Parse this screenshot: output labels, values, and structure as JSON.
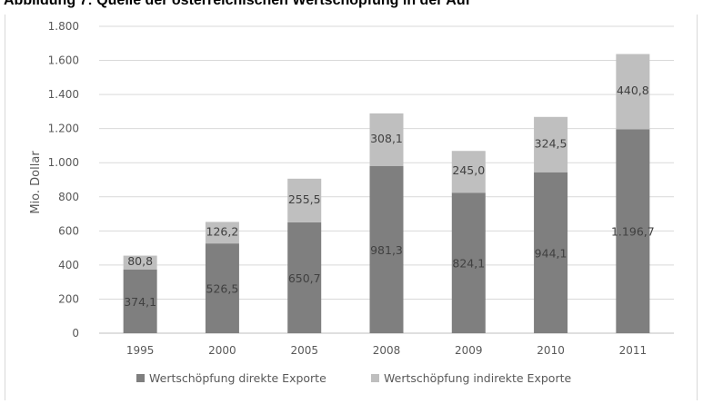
{
  "page_title": "Abbildung 7: Quelle der österreichischen Wertschöpfung in der Auf",
  "chart_data": {
    "type": "bar",
    "stacked": true,
    "categories": [
      "1995",
      "2000",
      "2005",
      "2008",
      "2009",
      "2010",
      "2011"
    ],
    "series": [
      {
        "name": "Wertschöpfung direkte Exporte",
        "color": "#7f7f7f",
        "values": [
          374.1,
          526.5,
          650.7,
          981.3,
          824.1,
          944.1,
          1196.7
        ],
        "labels": [
          "374,1",
          "526,5",
          "650,7",
          "981,3",
          "824,1",
          "944,1",
          "1.196,7"
        ]
      },
      {
        "name": "Wertschöpfung indirekte Exporte",
        "color": "#bfbfbf",
        "values": [
          80.8,
          126.2,
          255.5,
          308.1,
          245.0,
          324.5,
          440.8
        ],
        "labels": [
          "80,8",
          "126,2",
          "255,5",
          "308,1",
          "245,0",
          "324,5",
          "440,8"
        ]
      }
    ],
    "ylabel": "Mio. Dollar",
    "xlabel": "",
    "ylim": [
      0,
      1800
    ],
    "yticks": [
      0,
      200,
      400,
      600,
      800,
      1000,
      1200,
      1400,
      1600,
      1800
    ],
    "ytick_labels": [
      "0",
      "200",
      "400",
      "600",
      "800",
      "1.000",
      "1.200",
      "1.400",
      "1.600",
      "1.800"
    ],
    "grid": true,
    "legend_position": "bottom"
  }
}
